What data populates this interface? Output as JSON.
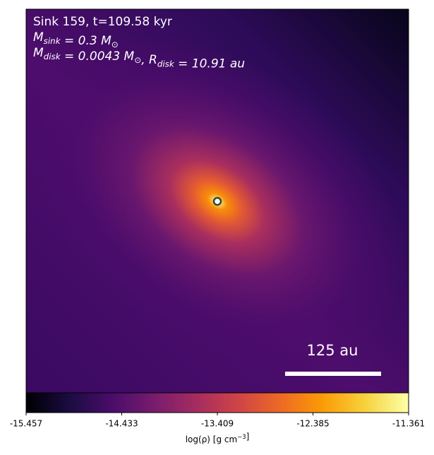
{
  "chart_data": {
    "type": "image",
    "annotations": [
      [
        {
          "text": "Sink 159, t=109.58 kyr"
        }
      ],
      [
        {
          "text": "M",
          "sub": "sink"
        },
        {
          "text": " = 0.3 M",
          "sub": "⊙"
        }
      ],
      [
        {
          "text": "M",
          "sub": "disk"
        },
        {
          "text": " = 0.0043 M",
          "sub": "⊙"
        },
        {
          "text": ", R",
          "sub": "disk"
        },
        {
          "text": " = 10.91 au"
        }
      ]
    ],
    "scale_bar": "125 au",
    "colormap": "inferno",
    "clim": [
      -15.457,
      -11.361
    ],
    "cticks": [
      -15.457,
      -14.433,
      -13.409,
      -12.385,
      -11.361
    ],
    "colorbar_label": [
      {
        "text": "log(ρ) [g cm",
        "sup": "−3"
      },
      {
        "text": "]"
      }
    ]
  }
}
